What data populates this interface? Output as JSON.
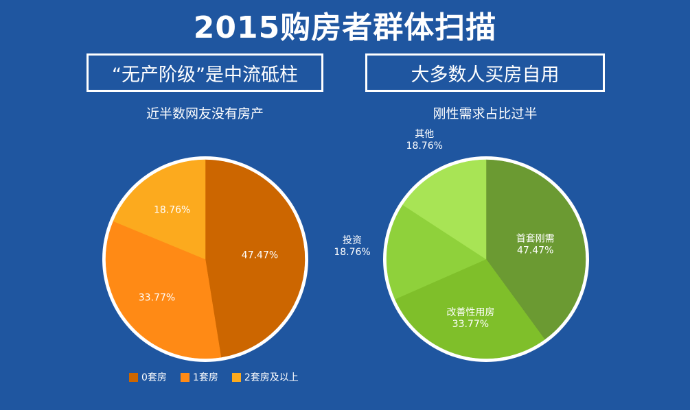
{
  "title": "2015购房者群体扫描",
  "left_panel": {
    "banner": "“无产阶级”是中流砥柱",
    "subtitle": "近半数网友没有房产"
  },
  "right_panel": {
    "banner": "大多数人买房自用",
    "subtitle": "刚性需求占比过半"
  },
  "chart_data": [
    {
      "type": "pie",
      "title": "近半数网友没有房产",
      "slices": [
        {
          "label": "0套房",
          "value": 47.47,
          "display": "47.47%",
          "color": "#cc6600"
        },
        {
          "label": "1套房",
          "value": 33.77,
          "display": "33.77%",
          "color": "#ff8a15"
        },
        {
          "label": "2套房及以上",
          "value": 18.76,
          "display": "18.76%",
          "color": "#fcaa1e"
        }
      ],
      "legend_position": "bottom"
    },
    {
      "type": "pie",
      "title": "刚性需求占比过半",
      "slices": [
        {
          "label": "首套刚需",
          "value": 47.47,
          "display": "47.47%",
          "color": "#6b9a32"
        },
        {
          "label": "改善性用房",
          "value": 33.77,
          "display": "33.77%",
          "color": "#7fbf2a"
        },
        {
          "label": "投资",
          "value": 18.76,
          "display": "18.76%",
          "color": "#8fd13b"
        },
        {
          "label": "其他",
          "value": 18.76,
          "display": "18.76%",
          "color": "#a8e455"
        }
      ],
      "legend_position": "none"
    }
  ]
}
